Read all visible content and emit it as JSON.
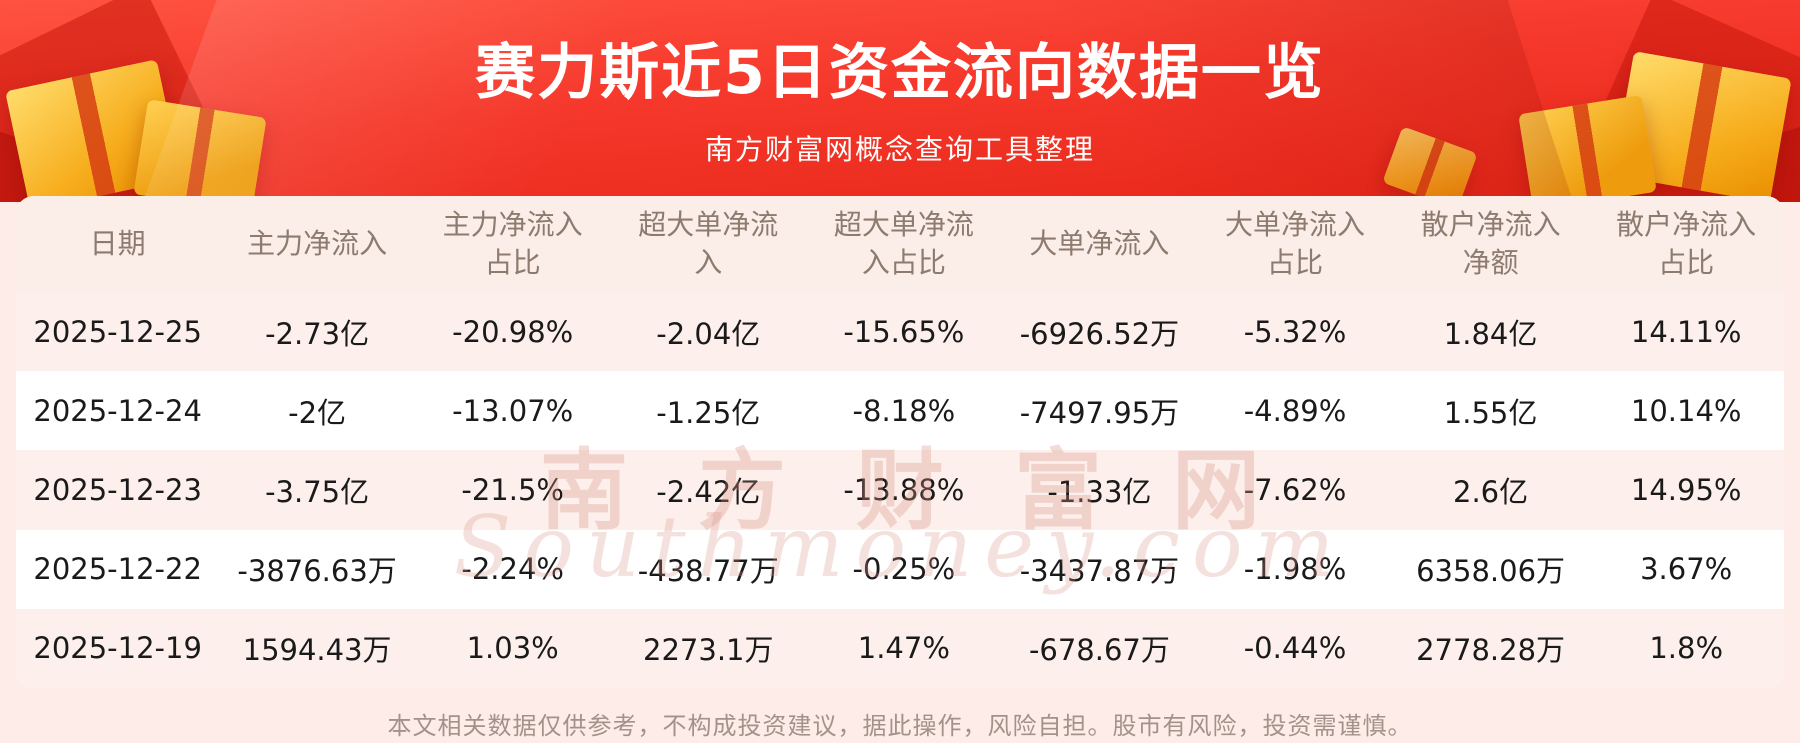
{
  "header": {
    "title": "赛力斯近5日资金流向数据一览",
    "subtitle": "南方财富网概念查询工具整理"
  },
  "watermark": {
    "cn": "南方财富网",
    "en": "Southmoney.com"
  },
  "footer": {
    "disclaimer": "本文相关数据仅供参考，不构成投资建议，据此操作，风险自担。股市有风险，投资需谨慎。"
  },
  "colors": {
    "banner_red": "#f5382b",
    "banner_red_dark": "#e62617",
    "gift_gold": "#f7ae1e",
    "row_pink": "#fdf0ec",
    "header_row_pink": "#fbeee8",
    "page_pink": "#fdece8",
    "header_text": "#8d7b6f",
    "data_text": "#1a1a1a",
    "footer_text": "#a2938a",
    "watermark_pink": "#d89285"
  },
  "chart_data": {
    "type": "table",
    "title": "赛力斯近5日资金流向数据一览",
    "columns": [
      "日期",
      "主力净流入",
      "主力净流入占比",
      "超大单净流入",
      "超大单净流入占比",
      "大单净流入",
      "大单净流入占比",
      "散户净流入净额",
      "散户净流入占比"
    ],
    "rows": [
      [
        "2025-12-25",
        "-2.73亿",
        "-20.98%",
        "-2.04亿",
        "-15.65%",
        "-6926.52万",
        "-5.32%",
        "1.84亿",
        "14.11%"
      ],
      [
        "2025-12-24",
        "-2亿",
        "-13.07%",
        "-1.25亿",
        "-8.18%",
        "-7497.95万",
        "-4.89%",
        "1.55亿",
        "10.14%"
      ],
      [
        "2025-12-23",
        "-3.75亿",
        "-21.5%",
        "-2.42亿",
        "-13.88%",
        "-1.33亿",
        "-7.62%",
        "2.6亿",
        "14.95%"
      ],
      [
        "2025-12-22",
        "-3876.63万",
        "-2.24%",
        "-438.77万",
        "-0.25%",
        "-3437.87万",
        "-1.98%",
        "6358.06万",
        "3.67%"
      ],
      [
        "2025-12-19",
        "1594.43万",
        "1.03%",
        "2273.1万",
        "1.47%",
        "-678.67万",
        "-0.44%",
        "2778.28万",
        "1.8%"
      ]
    ]
  }
}
